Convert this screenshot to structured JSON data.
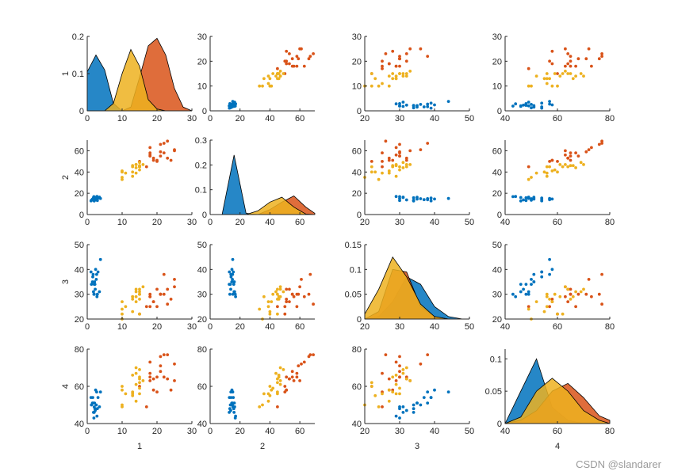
{
  "chart_data": {
    "type": "scatter",
    "layout": "scatter-matrix",
    "variable_labels": [
      "1",
      "2",
      "3",
      "4"
    ],
    "grid": false,
    "colors": {
      "group_blue": "#0072BD",
      "group_orange": "#D95319",
      "group_yellow": "#EDB120"
    },
    "group_order": [
      "group_blue",
      "group_orange",
      "group_yellow"
    ],
    "groups": {
      "group_blue": {
        "v1": [
          1.5,
          2.0,
          2.3,
          1.8,
          2.6,
          3.1,
          2.0,
          1.2,
          2.8,
          3.5,
          1.6,
          2.2,
          2.9,
          1.9,
          2.4,
          3.8,
          1.1,
          2.1,
          2.7,
          1.7
        ],
        "v2": [
          14.5,
          15.2,
          13.8,
          16.0,
          14.9,
          15.5,
          12.8,
          13.5,
          17.0,
          16.4,
          14.0,
          15.8,
          13.2,
          16.8,
          14.6,
          15.1,
          12.9,
          16.2,
          13.9,
          15.0
        ],
        "v3": [
          35,
          30,
          32,
          31,
          36,
          39,
          34,
          34,
          29,
          31,
          37,
          34,
          30,
          30,
          40,
          44,
          39,
          35,
          38,
          38
        ],
        "v4": [
          51,
          49,
          47,
          46,
          50,
          54,
          46,
          50,
          44,
          49,
          54,
          48,
          48,
          43,
          58,
          57,
          54,
          51,
          57,
          51
        ]
      },
      "group_yellow": {
        "v1": [
          14.0,
          15.0,
          15.0,
          13.0,
          15.0,
          13.0,
          16.0,
          10.0,
          13.0,
          14.0,
          10.0,
          15.0,
          10.0,
          14.0,
          13.0,
          14.0,
          15.0,
          10.0,
          15.0,
          11.0
        ],
        "v2": [
          47,
          45,
          49,
          40,
          46,
          45,
          47,
          33,
          46,
          39,
          35,
          42,
          40,
          47,
          36,
          44,
          45,
          41,
          45,
          39
        ],
        "v3": [
          32,
          32,
          31,
          23,
          28,
          28,
          33,
          24,
          29,
          27,
          20,
          30,
          22,
          29,
          29,
          31,
          30,
          27,
          22,
          25
        ],
        "v4": [
          70,
          64,
          69,
          55,
          65,
          57,
          63,
          49,
          66,
          52,
          50,
          59,
          60,
          61,
          56,
          67,
          56,
          58,
          62,
          56
        ]
      },
      "group_orange": {
        "v1": [
          25.0,
          19.0,
          21.0,
          18.0,
          22.0,
          21.0,
          17.0,
          18.0,
          18.0,
          25.0,
          20.0,
          19.0,
          21.0,
          20.0,
          24.0,
          23.0,
          18.0,
          22.0,
          23.0,
          15.0
        ],
        "v2": [
          60,
          51,
          59,
          56,
          58,
          66,
          45,
          63,
          58,
          61,
          51,
          53,
          55,
          50,
          51,
          53,
          55,
          67,
          69,
          50
        ],
        "v3": [
          33,
          27,
          30,
          29,
          30,
          30,
          25,
          29,
          25,
          36,
          32,
          27,
          30,
          25,
          28,
          32,
          30,
          38,
          26,
          22
        ],
        "v4": [
          63,
          58,
          71,
          63,
          65,
          76,
          49,
          73,
          67,
          72,
          65,
          64,
          68,
          57,
          58,
          64,
          65,
          77,
          77,
          60
        ]
      }
    },
    "diagonal_density": {
      "type": "area",
      "grid": [
        [
          0,
          2.5,
          5,
          7.5,
          10,
          12.5,
          15,
          17.5,
          20,
          22.5,
          25,
          27.5,
          30
        ],
        [
          0,
          8,
          16,
          24,
          32,
          40,
          48,
          56,
          64,
          70
        ],
        [
          20,
          24,
          28,
          32,
          36,
          40,
          44,
          48,
          50
        ],
        [
          40,
          46,
          52,
          58,
          64,
          70,
          76,
          80
        ]
      ],
      "group_blue": [
        [
          0.105,
          0.15,
          0.11,
          0.02,
          0,
          0,
          0,
          0,
          0,
          0,
          0,
          0,
          0
        ],
        [
          0,
          0,
          0.24,
          0.005,
          0,
          0,
          0,
          0,
          0,
          0
        ],
        [
          0,
          0.005,
          0.035,
          0.085,
          0.07,
          0.025,
          0.005,
          0,
          0
        ],
        [
          0,
          0.05,
          0.1,
          0.025,
          0.005,
          0,
          0,
          0
        ]
      ],
      "group_yellow": [
        [
          0,
          0,
          0,
          0.02,
          0.1,
          0.165,
          0.12,
          0.03,
          0.005,
          0,
          0,
          0,
          0
        ],
        [
          0,
          0,
          0,
          0,
          0.015,
          0.05,
          0.07,
          0.03,
          0.002,
          0
        ],
        [
          0.01,
          0.06,
          0.125,
          0.085,
          0.03,
          0.005,
          0,
          0,
          0
        ],
        [
          0,
          0.01,
          0.05,
          0.07,
          0.05,
          0.02,
          0.005,
          0
        ]
      ],
      "group_orange": [
        [
          0,
          0,
          0,
          0,
          0,
          0.01,
          0.09,
          0.175,
          0.195,
          0.15,
          0.06,
          0.01,
          0
        ],
        [
          0,
          0,
          0,
          0,
          0,
          0.02,
          0.05,
          0.075,
          0.03,
          0.005
        ],
        [
          0,
          0.015,
          0.1,
          0.095,
          0.025,
          0.005,
          0,
          0,
          0
        ],
        [
          0,
          0.005,
          0.02,
          0.05,
          0.062,
          0.04,
          0.012,
          0.005
        ]
      ]
    },
    "ranges": [
      [
        0,
        30
      ],
      [
        0,
        70
      ],
      [
        20,
        50
      ],
      [
        40,
        80
      ]
    ],
    "ticks": [
      [
        0,
        10,
        20,
        30
      ],
      [
        0,
        20,
        40,
        60
      ],
      [
        20,
        30,
        40,
        50
      ],
      [
        40,
        60,
        80
      ]
    ],
    "density_ylim": [
      [
        0,
        0.2
      ],
      [
        0,
        0.3
      ],
      [
        0,
        0.15
      ],
      [
        0,
        0.115
      ]
    ],
    "density_ticks": [
      [
        0,
        0.1,
        0.2
      ],
      [
        0,
        0.1,
        0.2,
        0.3
      ],
      [
        0,
        0.05,
        0.1,
        0.15
      ],
      [
        0,
        0.05,
        0.1
      ]
    ],
    "density_tick_labels": [
      [
        "0",
        "0.1",
        "0.2"
      ],
      [
        "0",
        "0.1",
        "0.2",
        "0.3"
      ],
      [
        "0",
        "0.05",
        "0.1",
        "0.15"
      ],
      [
        "0",
        "0.05",
        "0.1"
      ]
    ]
  },
  "watermark": "CSDN @slandarer"
}
